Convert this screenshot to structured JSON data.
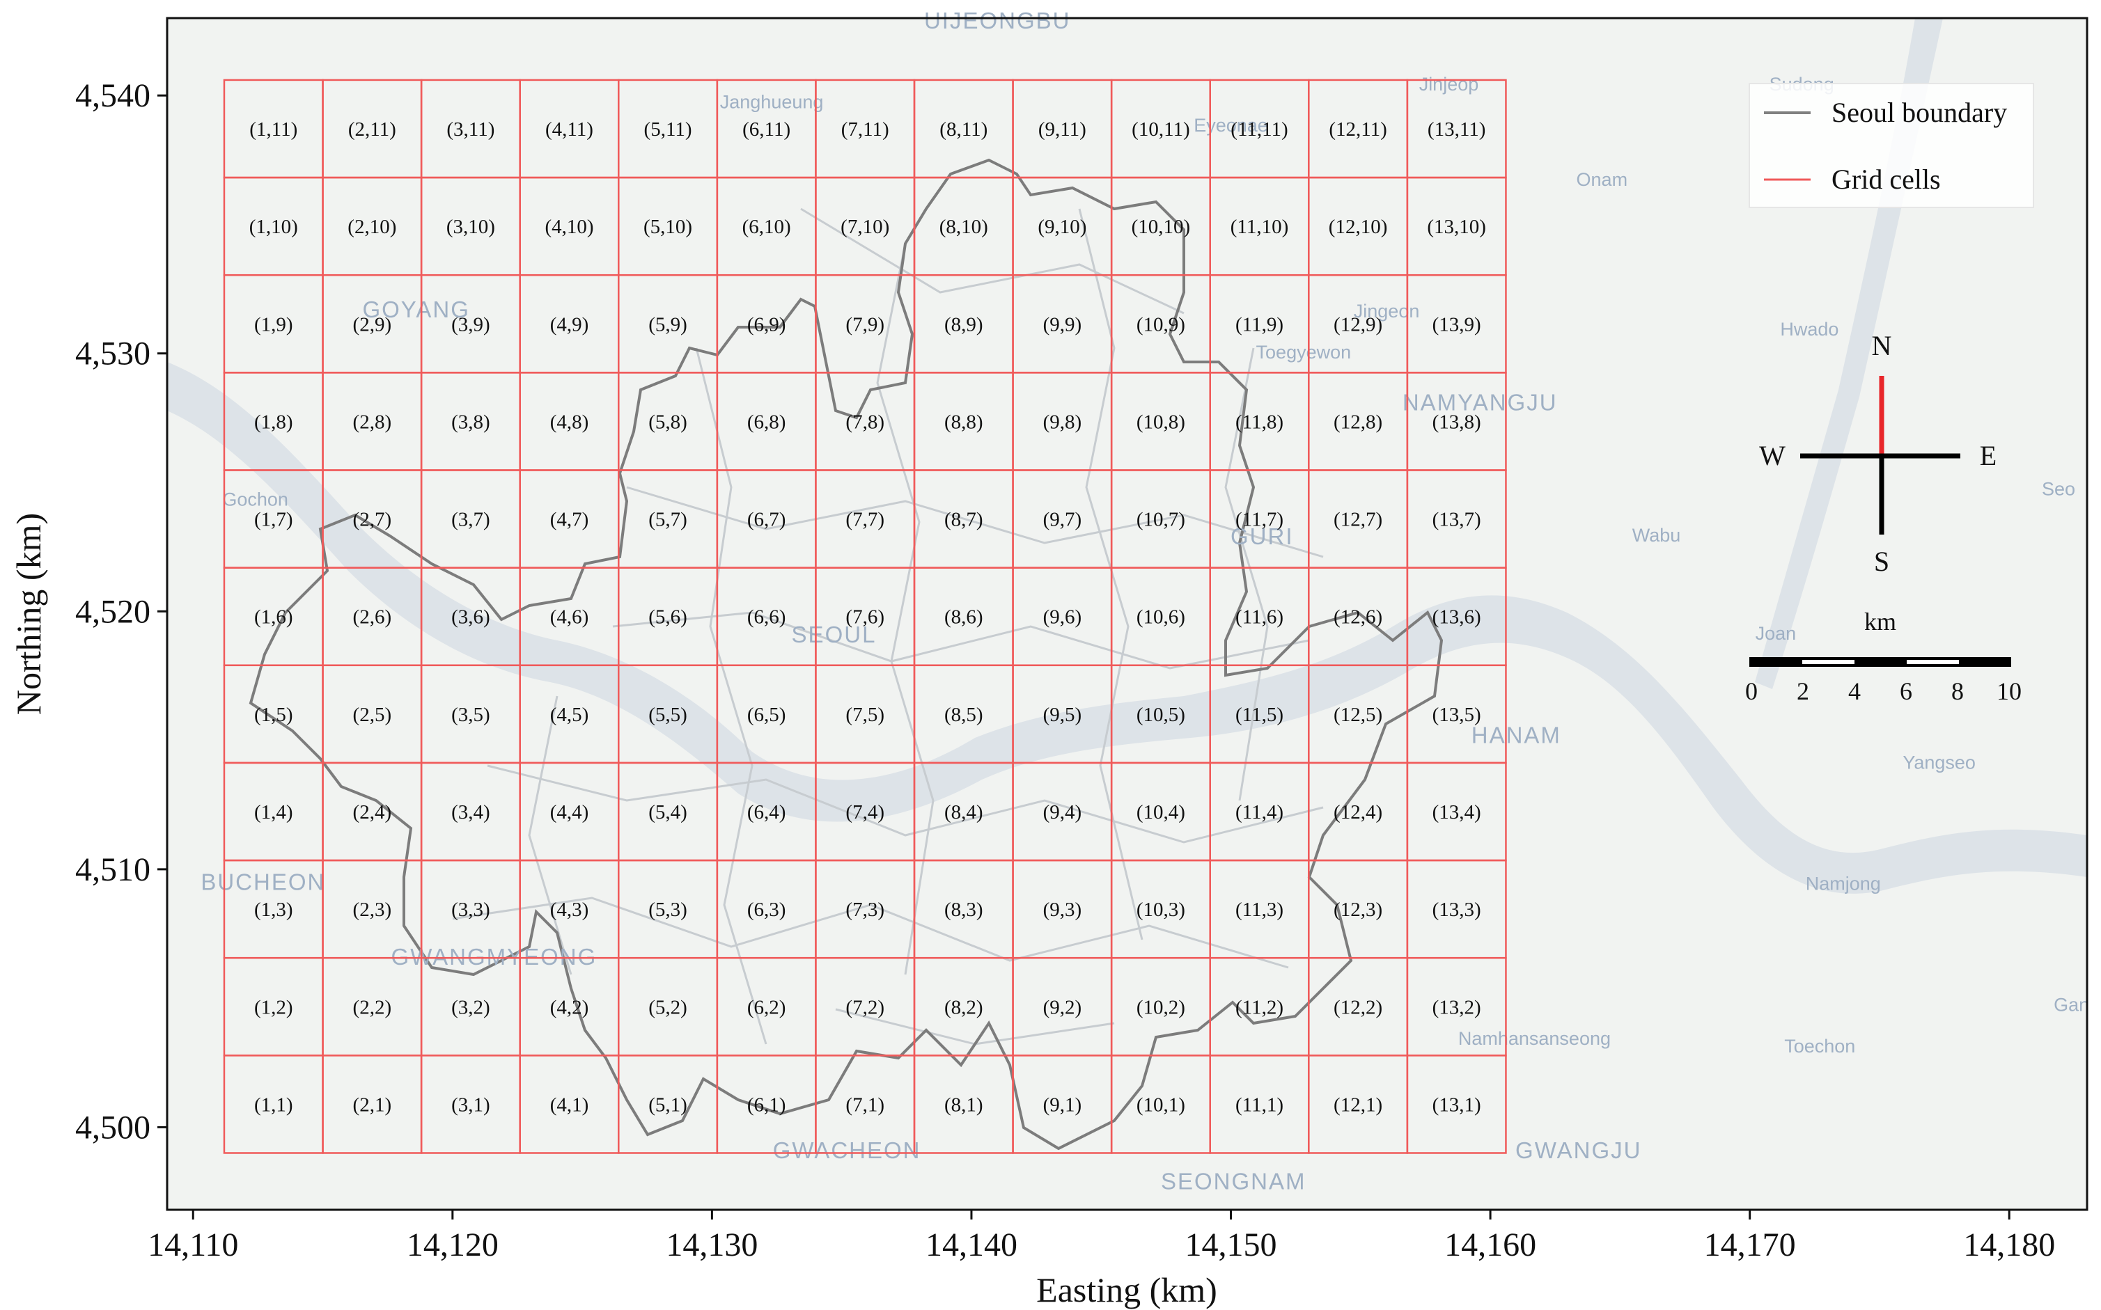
{
  "map": {
    "xlabel": "Easting (km)",
    "ylabel": "Northing (km)",
    "x_ticks": [
      {
        "value": 14110,
        "label": "14,110"
      },
      {
        "value": 14120,
        "label": "14,120"
      },
      {
        "value": 14130,
        "label": "14,130"
      },
      {
        "value": 14140,
        "label": "14,140"
      },
      {
        "value": 14150,
        "label": "14,150"
      },
      {
        "value": 14160,
        "label": "14,160"
      },
      {
        "value": 14170,
        "label": "14,170"
      },
      {
        "value": 14180,
        "label": "14,180"
      }
    ],
    "y_ticks": [
      {
        "value": 4500,
        "label": "4,500"
      },
      {
        "value": 4510,
        "label": "4,510"
      },
      {
        "value": 4520,
        "label": "4,520"
      },
      {
        "value": 4530,
        "label": "4,530"
      },
      {
        "value": 4540,
        "label": "4,540"
      }
    ],
    "xlim": [
      14109.0,
      14183.0
    ],
    "ylim": [
      4496.8,
      4543.0
    ],
    "grid": {
      "cols": 13,
      "rows": 11,
      "x_start": 14111.2,
      "x_end": 14160.6,
      "y_start": 4499.0,
      "y_end": 4540.6,
      "color": "#f05a5a"
    },
    "legend": {
      "position": "top-right",
      "items": [
        {
          "label": "Seoul boundary",
          "color": "#808080"
        },
        {
          "label": "Grid cells",
          "color": "#f05a5a"
        }
      ]
    },
    "compass": {
      "n": "N",
      "s": "S",
      "e": "E",
      "w": "W",
      "north_color": "#e8262a"
    },
    "scale_bar": {
      "unit": "km",
      "labels": [
        "0",
        "2",
        "4",
        "6",
        "8",
        "10"
      ]
    },
    "places": [
      {
        "name": "UIJEONGBU",
        "x": 14141.0,
        "y": 4542.6,
        "size": "big"
      },
      {
        "name": "Jinjeop",
        "x": 14158.4,
        "y": 4540.2,
        "size": "small"
      },
      {
        "name": "Sudong",
        "x": 14172.0,
        "y": 4540.2,
        "size": "small"
      },
      {
        "name": "Onam",
        "x": 14164.3,
        "y": 4536.5,
        "size": "small"
      },
      {
        "name": "Janghueung",
        "x": 14132.3,
        "y": 4539.5,
        "size": "small"
      },
      {
        "name": "Eyeonae",
        "x": 14150.0,
        "y": 4538.6,
        "size": "small"
      },
      {
        "name": "GOYANG",
        "x": 14118.6,
        "y": 4531.4,
        "size": "big"
      },
      {
        "name": "Jingeon",
        "x": 14156.0,
        "y": 4531.4,
        "size": "small"
      },
      {
        "name": "Hwado",
        "x": 14172.3,
        "y": 4530.7,
        "size": "small"
      },
      {
        "name": "Toegyewon",
        "x": 14152.8,
        "y": 4529.8,
        "size": "small"
      },
      {
        "name": "NAMYANGJU",
        "x": 14159.6,
        "y": 4527.8,
        "size": "big"
      },
      {
        "name": "Gochon",
        "x": 14112.4,
        "y": 4524.1,
        "size": "small"
      },
      {
        "name": "GURI",
        "x": 14151.2,
        "y": 4522.6,
        "size": "big"
      },
      {
        "name": "Wabu",
        "x": 14166.4,
        "y": 4522.7,
        "size": "small"
      },
      {
        "name": "Seo",
        "x": 14181.9,
        "y": 4524.5,
        "size": "small"
      },
      {
        "name": "SEOUL",
        "x": 14134.7,
        "y": 4518.8,
        "size": "big"
      },
      {
        "name": "Joan",
        "x": 14171.0,
        "y": 4518.9,
        "size": "small"
      },
      {
        "name": "HANAM",
        "x": 14161.0,
        "y": 4514.9,
        "size": "big"
      },
      {
        "name": "Yangseo",
        "x": 14177.3,
        "y": 4513.9,
        "size": "small"
      },
      {
        "name": "BUCHEON",
        "x": 14112.7,
        "y": 4509.2,
        "size": "big"
      },
      {
        "name": "Namjong",
        "x": 14173.6,
        "y": 4509.2,
        "size": "small"
      },
      {
        "name": "GWANGMYEONG",
        "x": 14121.6,
        "y": 4506.3,
        "size": "big"
      },
      {
        "name": "Gan",
        "x": 14182.4,
        "y": 4504.5,
        "size": "small"
      },
      {
        "name": "Namhansanseong",
        "x": 14161.7,
        "y": 4503.2,
        "size": "small"
      },
      {
        "name": "Toechon",
        "x": 14172.7,
        "y": 4502.9,
        "size": "small"
      },
      {
        "name": "GWACHEON",
        "x": 14135.2,
        "y": 4498.8,
        "size": "big"
      },
      {
        "name": "GWANGJU",
        "x": 14163.4,
        "y": 4498.8,
        "size": "big"
      },
      {
        "name": "SEONGNAM",
        "x": 14150.1,
        "y": 4497.6,
        "size": "big"
      }
    ]
  }
}
